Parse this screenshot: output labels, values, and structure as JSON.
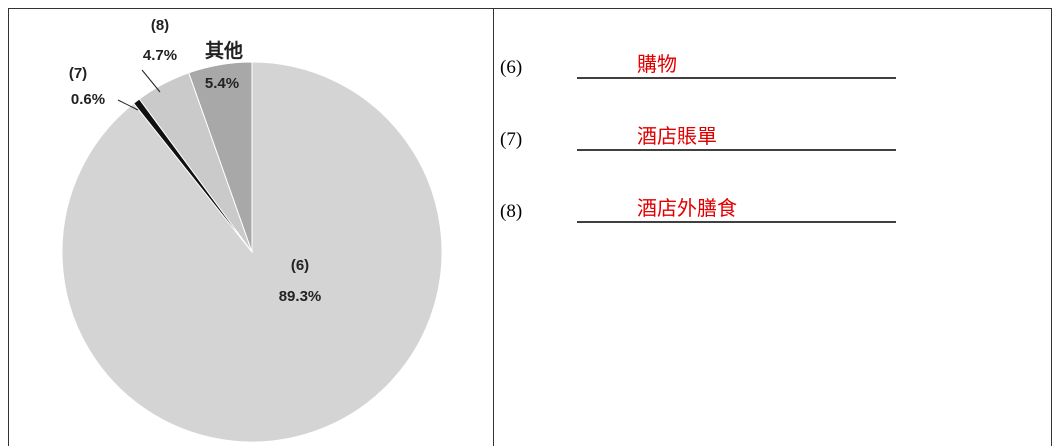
{
  "chart_data": {
    "type": "pie",
    "categories": [
      "(6)",
      "(7)",
      "(8)",
      "其他"
    ],
    "values": [
      89.3,
      0.6,
      4.7,
      5.4
    ],
    "value_labels": [
      "89.3%",
      "0.6%",
      "4.7%",
      "5.4%"
    ],
    "colors": [
      "#d4d4d4",
      "#111111",
      "#cacaca",
      "#a8a8a8"
    ]
  },
  "answers": [
    {
      "number": "(6)",
      "text": "購物"
    },
    {
      "number": "(7)",
      "text": "酒店賬單"
    },
    {
      "number": "(8)",
      "text": "酒店外膳食"
    }
  ]
}
